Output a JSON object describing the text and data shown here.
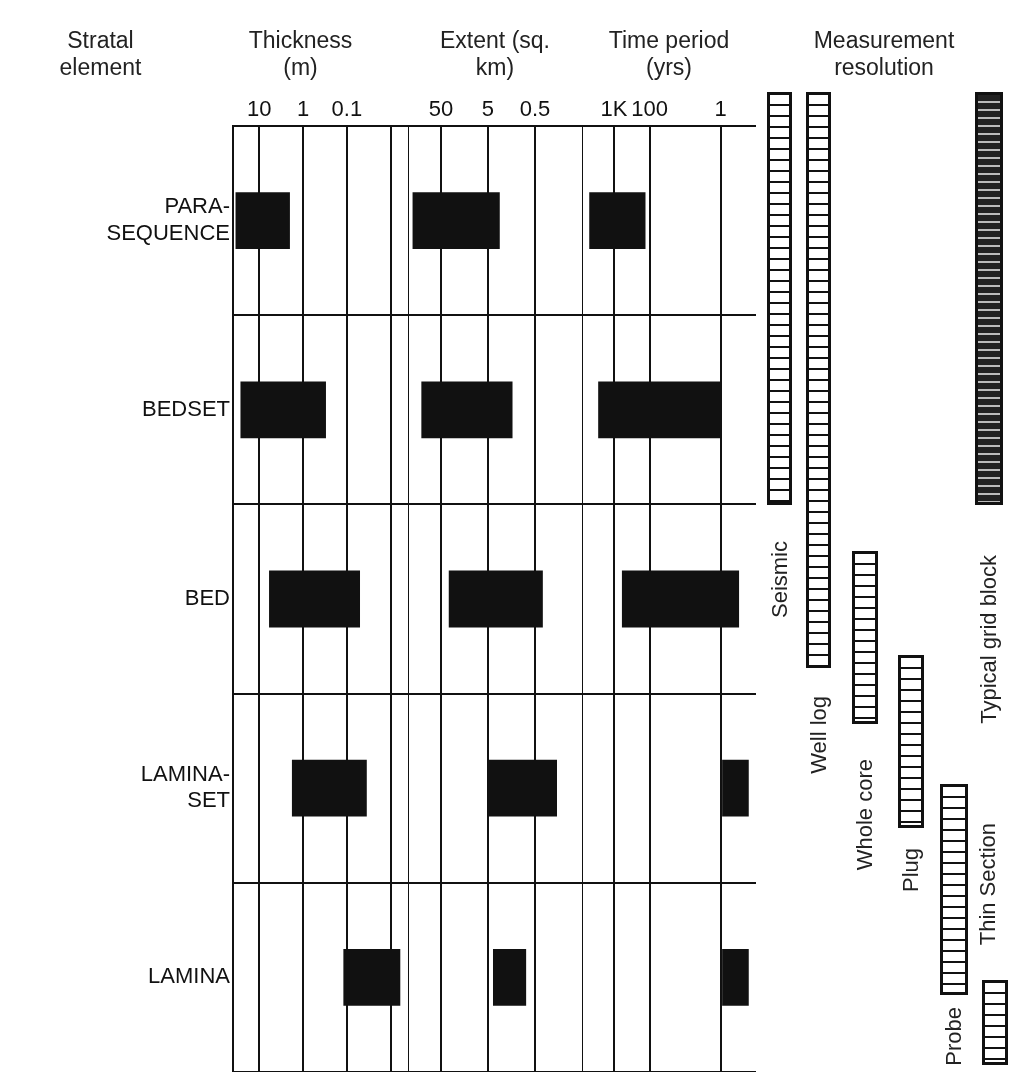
{
  "chart_data": [
    {
      "type": "bar",
      "orientation": "horizontal",
      "title": "Thickness (m)",
      "ylabel": "Stratal element",
      "categories": [
        "PARA-SEQUENCE",
        "BEDSET",
        "BED",
        "LAMINA-SET",
        "LAMINA"
      ],
      "series": [
        {
          "color": "#111111",
          "base": [
            2,
            0.3,
            0.05,
            0.035,
            0.006
          ],
          "values": [
            33,
            26.7,
            5.95,
            1.765,
            0.114
          ]
        }
      ],
      "log": "x",
      "xlim": [
        40,
        0.004
      ],
      "xticks": [
        10,
        1,
        0.1,
        {
          "value": 0.01,
          "label": null
        }
      ],
      "grid": true,
      "legend": false
    },
    {
      "type": "bar",
      "orientation": "horizontal",
      "title": "Extent (sq. km)",
      "categories": [
        null,
        null,
        null,
        null,
        null
      ],
      "series": [
        {
          "color": "#111111",
          "base": [
            2.8,
            1.5,
            0.34,
            0.17,
            0.77
          ],
          "values": [
            197.2,
            128.5,
            33.66,
            4.83,
            3.13
          ]
        }
      ],
      "log": "x",
      "xlim": [
        250,
        0.05
      ],
      "xticks": [
        50,
        5,
        0.5
      ],
      "grid": true,
      "legend": false,
      "tick_labels": "x"
    },
    {
      "type": "bar",
      "orientation": "horizontal",
      "title": "Time period (yrs)",
      "categories": [
        null,
        null,
        null,
        null,
        null
      ],
      "series": [
        {
          "color": "#111111",
          "base": [
            130,
            1,
            0.3,
            0.16,
            0.16
          ],
          "values": [
            4870,
            2799,
            599.7,
            0.74,
            0.74
          ]
        }
      ],
      "log": "x",
      "xlim": [
        8000,
        0.1
      ],
      "xticks": [
        {
          "value": 1000,
          "label": "1K"
        },
        100,
        1
      ],
      "grid": true,
      "legend": false,
      "tick_labels": "x"
    },
    {
      "type": "other",
      "title": "Measurement resolution",
      "annotations": [
        "Seismic",
        "Well log",
        "Whole core",
        "Plug",
        "Probe",
        "Typical grid block",
        "Thin Section"
      ]
    }
  ]
}
